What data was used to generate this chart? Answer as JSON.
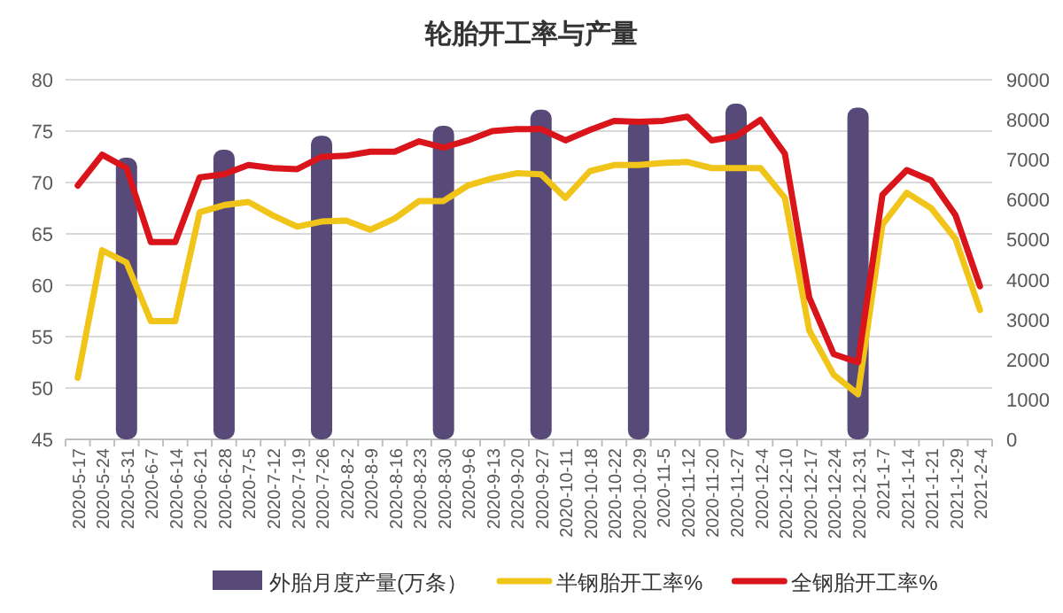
{
  "chart_data": {
    "type": "bar",
    "title": "轮胎开工率与产量",
    "categories": [
      "2020-5-17",
      "2020-5-24",
      "2020-5-31",
      "2020-6-7",
      "2020-6-14",
      "2020-6-21",
      "2020-6-28",
      "2020-7-5",
      "2020-7-12",
      "2020-7-19",
      "2020-7-26",
      "2020-8-2",
      "2020-8-9",
      "2020-8-16",
      "2020-8-23",
      "2020-8-30",
      "2020-9-6",
      "2020-9-13",
      "2020-9-20",
      "2020-9-27",
      "2020-10-11",
      "2020-10-18",
      "2020-10-22",
      "2020-10-29",
      "2020-11-5",
      "2020-11-12",
      "2020-11-20",
      "2020-11-27",
      "2020-12-4",
      "2020-12-10",
      "2020-12-17",
      "2020-12-24",
      "2020-12-31",
      "2021-1-7",
      "2021-1-14",
      "2021-1-21",
      "2021-1-29",
      "2021-2-4"
    ],
    "series": [
      {
        "name": "外胎月度产量(万条）",
        "color": "#574a78",
        "axis": "y2",
        "values": [
          null,
          null,
          7050,
          null,
          null,
          null,
          7250,
          null,
          null,
          null,
          7600,
          null,
          null,
          null,
          null,
          7850,
          null,
          null,
          null,
          8250,
          null,
          null,
          null,
          8000,
          null,
          null,
          null,
          8400,
          null,
          null,
          null,
          null,
          8300,
          null,
          null,
          null,
          null,
          null
        ]
      },
      {
        "name": "半钢胎开工率%",
        "color": "#f0c419",
        "type": "line",
        "values": [
          51.0,
          63.4,
          62.2,
          56.5,
          56.5,
          67.1,
          67.8,
          68.1,
          66.8,
          65.7,
          66.2,
          66.3,
          65.4,
          66.5,
          68.2,
          68.2,
          69.7,
          70.4,
          70.9,
          70.8,
          68.5,
          71.1,
          71.7,
          71.7,
          71.9,
          72.0,
          71.4,
          71.4,
          71.4,
          68.5,
          55.6,
          51.3,
          49.4,
          65.9,
          69.0,
          67.5,
          64.5,
          57.6
        ]
      },
      {
        "name": "全钢胎开工率%",
        "color": "#d9141b",
        "type": "line",
        "values": [
          69.7,
          72.7,
          71.4,
          64.2,
          64.2,
          70.5,
          70.8,
          71.7,
          71.4,
          71.3,
          72.5,
          72.6,
          73.0,
          73.0,
          74.0,
          73.4,
          74.1,
          75.0,
          75.2,
          75.2,
          74.1,
          75.1,
          76.0,
          75.9,
          76.0,
          76.4,
          74.1,
          74.5,
          76.1,
          72.8,
          58.8,
          53.3,
          52.5,
          68.8,
          71.2,
          70.2,
          66.8,
          59.9
        ]
      }
    ],
    "ylim": [
      45,
      80
    ],
    "yticks": [
      45,
      50,
      55,
      60,
      65,
      70,
      75,
      80
    ],
    "y2lim": [
      0,
      9000
    ],
    "y2ticks": [
      0,
      1000,
      2000,
      3000,
      4000,
      5000,
      6000,
      7000,
      8000,
      9000
    ],
    "grid": "y",
    "legend": "bottom"
  }
}
